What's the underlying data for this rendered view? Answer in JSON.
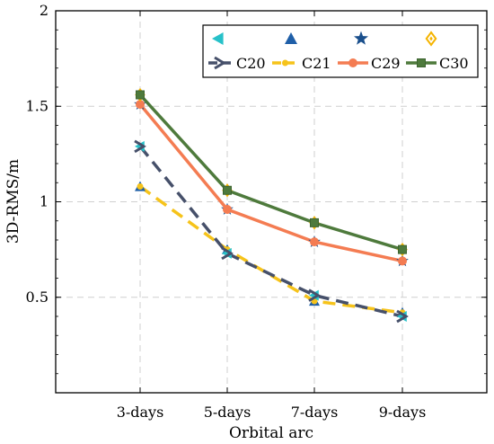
{
  "chart_data": {
    "type": "line",
    "xlabel": "Orbital arc",
    "ylabel": "3D-RMS/m",
    "categories": [
      "3-days",
      "5-days",
      "7-days",
      "9-days"
    ],
    "ylim": [
      0,
      2
    ],
    "yticks": [
      0.5,
      1,
      1.5,
      2
    ],
    "ytick_labels": [
      "0.5",
      "1",
      "1.5",
      "2"
    ],
    "grid": true,
    "legend_position": "top-right",
    "series": [
      {
        "name": "C20",
        "values": [
          1.29,
          0.73,
          0.51,
          0.4
        ],
        "color": "#46506a",
        "line_style": "dashed",
        "marker": "arrow",
        "sat_marker": "triangle-left",
        "sat_marker_color": "#27c1c9"
      },
      {
        "name": "C21",
        "values": [
          1.08,
          0.75,
          0.48,
          0.42
        ],
        "color": "#f6c31a",
        "line_style": "dashed",
        "marker": "dot",
        "sat_marker": "triangle-up",
        "sat_marker_color": "#1f5fa8"
      },
      {
        "name": "C29",
        "values": [
          1.51,
          0.96,
          0.79,
          0.69
        ],
        "color": "#f47c52",
        "line_style": "solid",
        "marker": "circle",
        "sat_marker": "star",
        "sat_marker_color": "#1a4f8c"
      },
      {
        "name": "C30",
        "values": [
          1.56,
          1.06,
          0.89,
          0.75
        ],
        "color": "#4e7a3c",
        "line_style": "solid",
        "marker": "square",
        "sat_marker": "diamond",
        "sat_marker_color": "#f5b400"
      }
    ]
  }
}
